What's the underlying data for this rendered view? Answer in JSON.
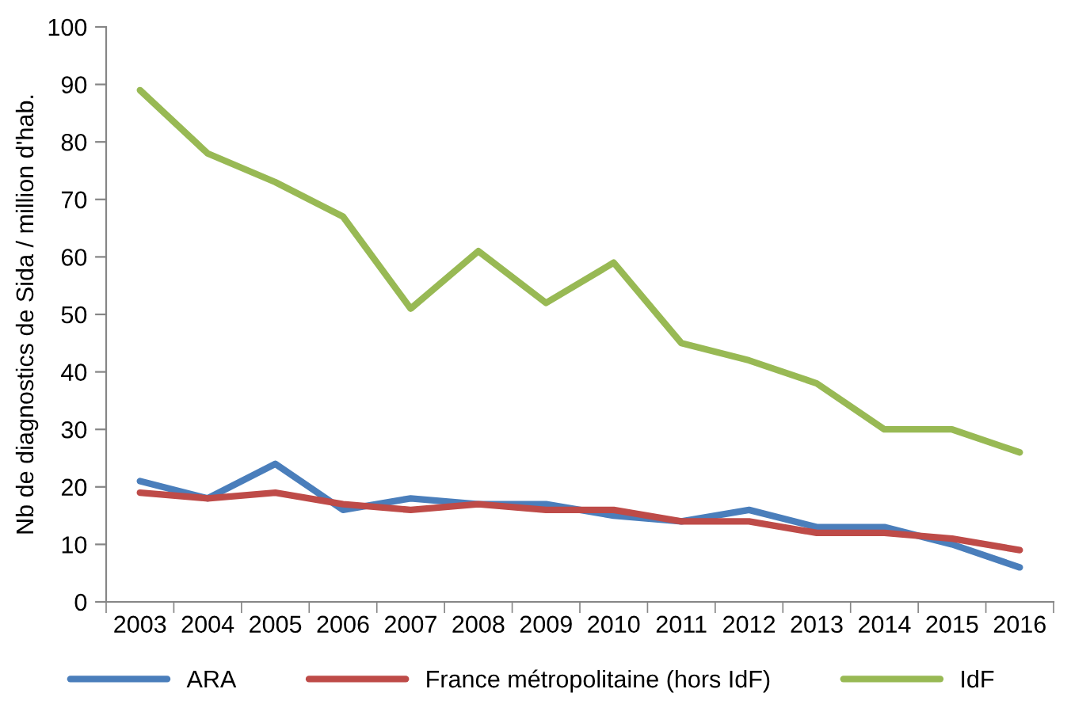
{
  "chart_data": {
    "type": "line",
    "ylabel": "Nb de diagnostics de Sida / million d'hab.",
    "categories": [
      "2003",
      "2004",
      "2005",
      "2006",
      "2007",
      "2008",
      "2009",
      "2010",
      "2011",
      "2012",
      "2013",
      "2014",
      "2015",
      "2016"
    ],
    "series": [
      {
        "name": "ARA",
        "color": "#4a7ebb",
        "values": [
          21,
          18,
          24,
          16,
          18,
          17,
          17,
          15,
          14,
          16,
          13,
          13,
          10,
          6
        ]
      },
      {
        "name": "France métropolitaine (hors IdF)",
        "color": "#be4b48",
        "values": [
          19,
          18,
          19,
          17,
          16,
          17,
          16,
          16,
          14,
          14,
          12,
          12,
          11,
          9
        ]
      },
      {
        "name": "IdF",
        "color": "#98b954",
        "values": [
          89,
          78,
          73,
          67,
          51,
          61,
          52,
          59,
          45,
          42,
          38,
          30,
          30,
          26
        ]
      }
    ],
    "ylim": [
      0,
      100
    ],
    "yticks": [
      0,
      10,
      20,
      30,
      40,
      50,
      60,
      70,
      80,
      90,
      100
    ],
    "grid": false,
    "legend": "bottom",
    "marker": "none",
    "line_style": "solid"
  }
}
